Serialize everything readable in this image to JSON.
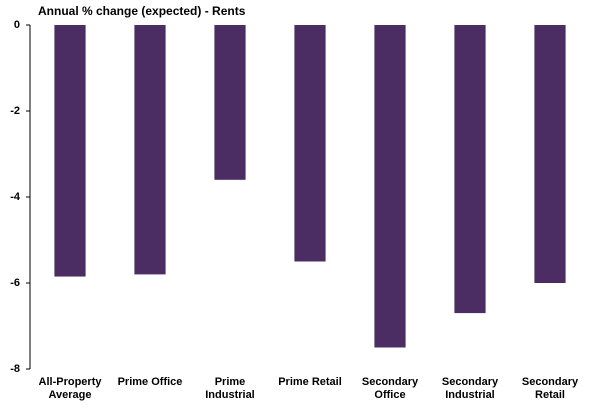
{
  "chart_data": {
    "type": "bar",
    "title": "Annual % change (expected) - Rents",
    "categories": [
      "All-Property\nAverage",
      "Prime Office",
      "Prime Industrial",
      "Prime Retail",
      "Secondary\nOffice",
      "Secondary\nIndustrial",
      "Secondary\nRetail"
    ],
    "values": [
      -5.85,
      -5.8,
      -3.6,
      -5.5,
      -7.5,
      -6.7,
      -6.0
    ],
    "color": "#4b2d63",
    "ylim": [
      -8,
      0
    ],
    "yticks": [
      0,
      -2,
      -4,
      -6,
      -8
    ],
    "grid": false
  }
}
